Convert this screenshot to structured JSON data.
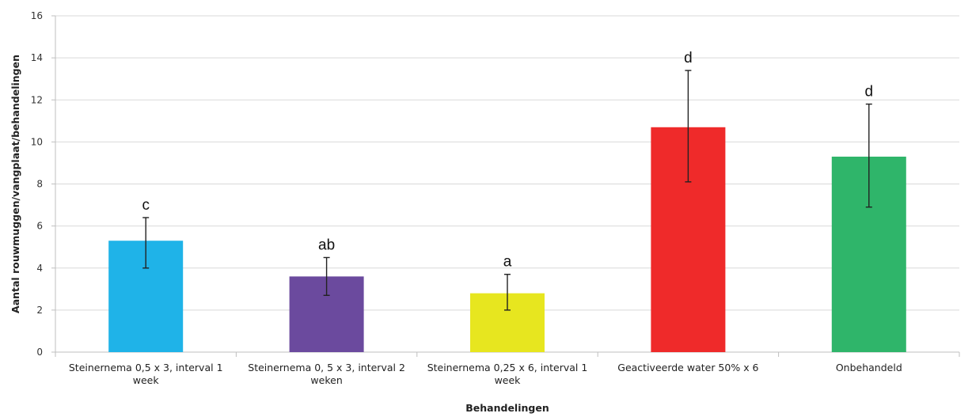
{
  "chart_data": {
    "type": "bar",
    "categories": [
      [
        "Steinernema 0,5 x 3, interval 1",
        "week"
      ],
      [
        "Steinernema 0, 5 x 3, interval 2",
        "weken"
      ],
      [
        "Steinernema 0,25 x 6, interval 1",
        "week"
      ],
      [
        "Geactiveerde water 50% x 6"
      ],
      [
        "Onbehandeld"
      ]
    ],
    "values": [
      5.3,
      3.6,
      2.8,
      10.7,
      9.3
    ],
    "error_low": [
      4.0,
      2.7,
      2.0,
      8.1,
      6.9
    ],
    "error_high": [
      6.4,
      4.5,
      3.7,
      13.4,
      11.8
    ],
    "significance_labels": [
      "c",
      "ab",
      "a",
      "d",
      "d"
    ],
    "bar_colors": [
      "#1fb3e8",
      "#6b4a9e",
      "#e7e61f",
      "#ef2a2a",
      "#2fb56a"
    ],
    "xlabel": "Behandelingen",
    "ylabel": "Aantal rouwmuggen/vangplaat/behandelingen",
    "ylim": [
      0,
      16
    ],
    "yticks": [
      0,
      2,
      4,
      6,
      8,
      10,
      12,
      14,
      16
    ],
    "grid": true
  }
}
